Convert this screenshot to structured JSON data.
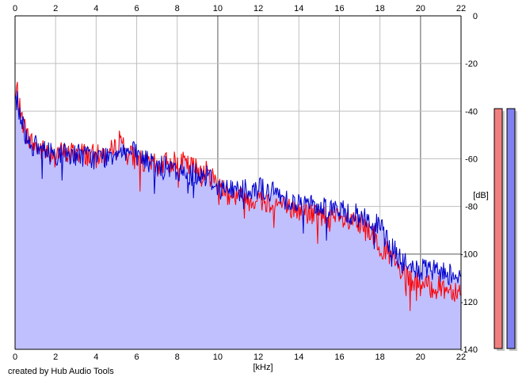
{
  "chart_data": {
    "type": "area",
    "x_unit_label": "[kHz]",
    "y_unit_label": "[dB]",
    "xlim": [
      0,
      22
    ],
    "ylim": [
      -140,
      0
    ],
    "x_ticks": [
      0,
      2,
      4,
      6,
      8,
      10,
      12,
      14,
      16,
      18,
      20,
      22
    ],
    "y_ticks": [
      0,
      -20,
      -40,
      -60,
      -80,
      -100,
      -120,
      -140
    ],
    "grid": true,
    "colors": {
      "fill": "#c0c0ff",
      "left_channel": "#ff0000",
      "right_channel": "#0000cc",
      "grid": "#c0c0c0",
      "grid_major": "#909090",
      "meter_left": "#f08080",
      "meter_right": "#8080f0"
    },
    "series": [
      {
        "x": [
          0,
          0.1,
          0.2,
          0.3,
          0.5,
          0.7,
          1.0,
          1.2,
          1.5,
          2.0,
          2.5,
          3.0,
          3.5,
          4.0,
          4.5,
          5.0,
          5.2,
          5.5,
          6.0,
          6.5,
          7.0,
          7.5,
          8.0,
          8.5,
          9.0,
          9.5,
          10.0,
          10.5,
          11.0,
          11.5,
          12.0,
          12.5,
          13.0,
          13.5,
          14.0,
          14.5,
          15.0,
          15.5,
          16.0,
          16.5,
          17.0,
          17.5,
          18.0,
          18.5,
          18.8,
          19.0,
          19.5,
          20.0,
          20.5,
          21.0,
          21.5,
          22.0
        ],
        "values": [
          -36,
          -30,
          -38,
          -42,
          -48,
          -52,
          -55,
          -56,
          -57,
          -57,
          -58,
          -57,
          -58,
          -59,
          -58,
          -56,
          -50,
          -58,
          -60,
          -62,
          -63,
          -62,
          -60,
          -63,
          -64,
          -66,
          -70,
          -74,
          -76,
          -77,
          -77,
          -78,
          -79,
          -81,
          -82,
          -83,
          -84,
          -84,
          -86,
          -87,
          -88,
          -90,
          -96,
          -101,
          -105,
          -108,
          -111,
          -113,
          -114,
          -114,
          -115,
          -115
        ]
      },
      {
        "x": [
          0,
          0.1,
          0.2,
          0.3,
          0.5,
          0.7,
          1.0,
          1.2,
          1.5,
          2.0,
          2.5,
          3.0,
          3.5,
          4.0,
          4.5,
          5.0,
          5.2,
          5.5,
          6.0,
          6.5,
          7.0,
          7.5,
          8.0,
          8.5,
          9.0,
          9.5,
          10.0,
          10.5,
          11.0,
          11.5,
          12.0,
          12.5,
          13.0,
          13.5,
          14.0,
          14.5,
          15.0,
          15.5,
          16.0,
          16.5,
          17.0,
          17.5,
          18.0,
          18.5,
          18.8,
          19.0,
          19.5,
          20.0,
          20.5,
          21.0,
          21.5,
          22.0
        ],
        "values": [
          -37,
          -34,
          -40,
          -43,
          -49,
          -53,
          -55,
          -56,
          -57,
          -58,
          -58,
          -58,
          -59,
          -60,
          -59,
          -57,
          -55,
          -57,
          -58,
          -61,
          -63,
          -64,
          -66,
          -67,
          -66,
          -67,
          -72,
          -73,
          -73,
          -72,
          -72,
          -74,
          -75,
          -77,
          -79,
          -79,
          -80,
          -80,
          -82,
          -83,
          -84,
          -86,
          -89,
          -96,
          -100,
          -103,
          -106,
          -107,
          -107,
          -108,
          -108,
          -108
        ]
      }
    ],
    "meters": [
      -20,
      -20
    ]
  },
  "footer": {
    "credit": "created by Hub Audio Tools"
  }
}
